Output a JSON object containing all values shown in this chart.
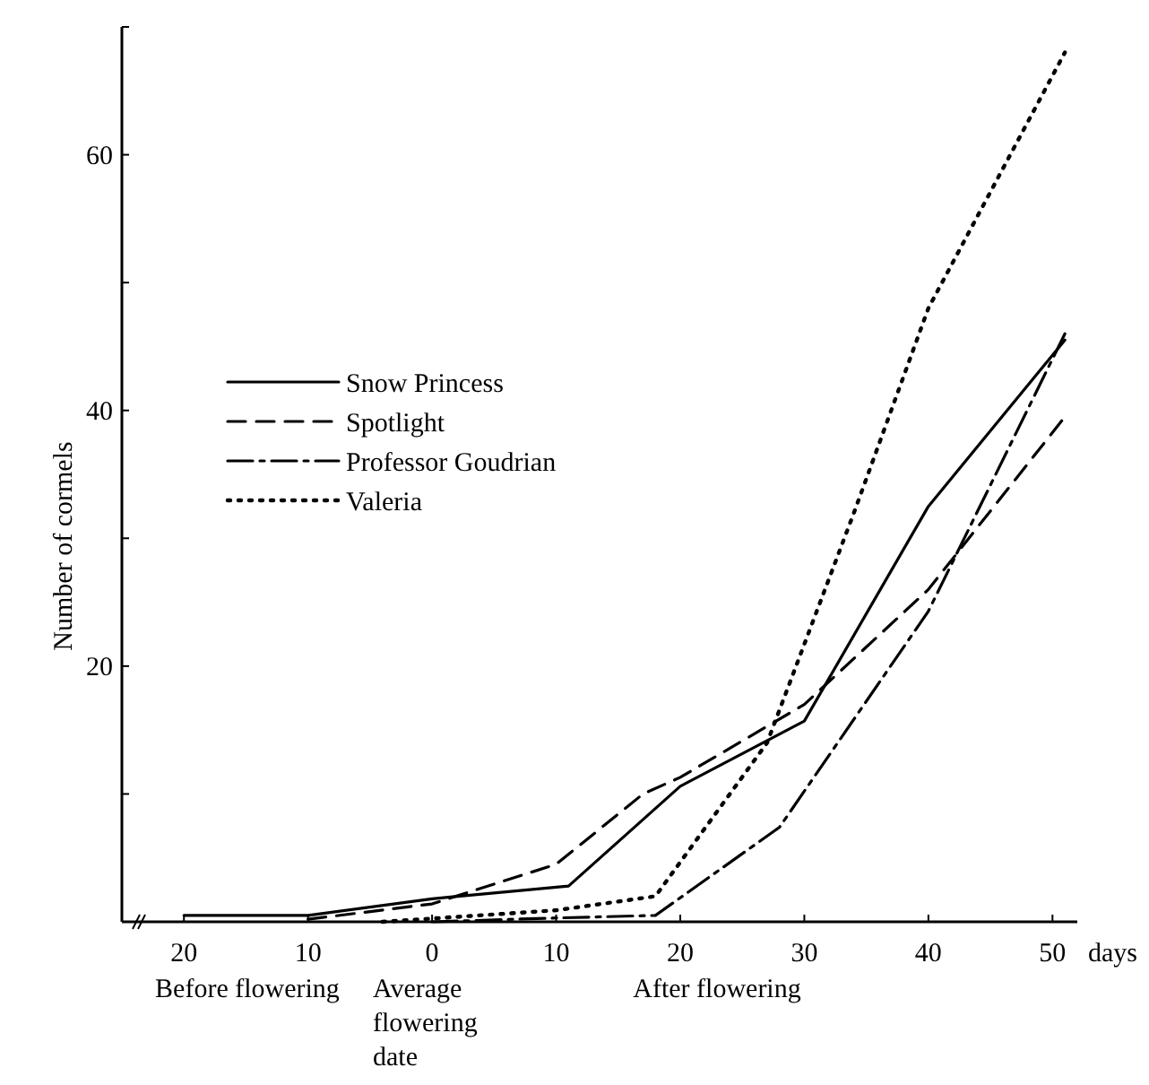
{
  "chart_data": {
    "type": "line",
    "xlabel": "days",
    "ylabel": "Number of cormels",
    "xlim": [
      -25,
      52
    ],
    "xticks": [
      {
        "value": -20,
        "label": "20"
      },
      {
        "value": -10,
        "label": "10"
      },
      0,
      10,
      20,
      30,
      40,
      50
    ],
    "ylim": [
      0,
      70
    ],
    "yticks": [
      {
        "value": 10,
        "label": null
      },
      20,
      {
        "value": 30,
        "label": null
      },
      40,
      {
        "value": 50,
        "label": null
      },
      60,
      {
        "value": 70,
        "label": null
      }
    ],
    "grid": false,
    "legend": "left",
    "marker": "none",
    "annotations": [
      "Before flowering",
      "Average flowering date",
      "After flowering"
    ],
    "series": [
      {
        "name": "Snow Princess",
        "color": "#000000",
        "line_style": "solid",
        "x": [
          -20,
          -10,
          0,
          11,
          20,
          30,
          40,
          51
        ],
        "values": [
          0.5,
          0.5,
          1.8,
          2.8,
          10.6,
          15.7,
          32.5,
          45.5
        ]
      },
      {
        "name": "Spotlight",
        "color": "#000000",
        "line_style": "dashed",
        "x": [
          -10,
          0,
          10,
          17,
          20,
          30,
          40,
          51
        ],
        "values": [
          0.2,
          1.4,
          4.5,
          10,
          11.3,
          17,
          26,
          39.5
        ]
      },
      {
        "name": "Professor Goudrian",
        "color": "#000000",
        "line_style": "dashdot",
        "x": [
          0,
          10,
          18,
          28,
          40,
          51
        ],
        "values": [
          0,
          0.3,
          0.5,
          7.4,
          24.3,
          46
        ]
      },
      {
        "name": "Valeria",
        "color": "#000000",
        "line_style": "dotted",
        "x": [
          -4,
          10,
          18,
          27,
          34,
          40,
          51
        ],
        "values": [
          0,
          0.9,
          2,
          14,
          32,
          48,
          68
        ]
      }
    ]
  }
}
